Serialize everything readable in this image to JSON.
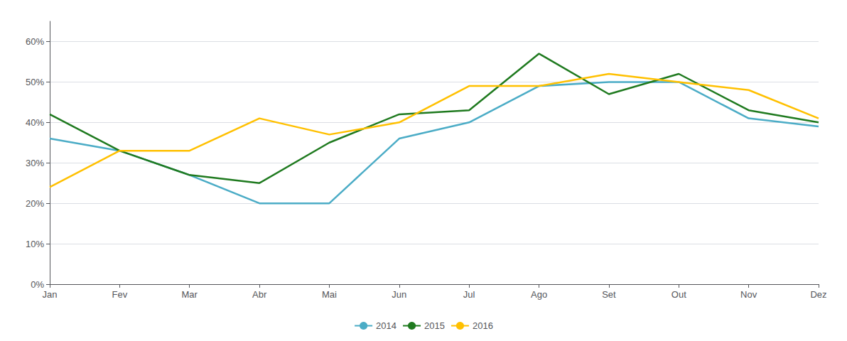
{
  "chart_data": {
    "type": "line",
    "categories": [
      "Jan",
      "Fev",
      "Mar",
      "Abr",
      "Mai",
      "Jun",
      "Jul",
      "Ago",
      "Set",
      "Out",
      "Nov",
      "Dez"
    ],
    "series": [
      {
        "name": "2014",
        "color": "#4BACC6",
        "values": [
          0.36,
          0.33,
          0.27,
          0.2,
          0.2,
          0.36,
          0.4,
          0.49,
          0.5,
          0.5,
          0.41,
          0.39
        ]
      },
      {
        "name": "2015",
        "color": "#1F7A1F",
        "values": [
          0.42,
          0.33,
          0.27,
          0.25,
          0.35,
          0.42,
          0.43,
          0.57,
          0.47,
          0.52,
          0.43,
          0.4
        ]
      },
      {
        "name": "2016",
        "color": "#FFC000",
        "values": [
          0.24,
          0.33,
          0.33,
          0.41,
          0.37,
          0.4,
          0.49,
          0.49,
          0.52,
          0.5,
          0.48,
          0.41
        ]
      }
    ],
    "ylim": [
      0,
      0.65
    ],
    "yticks": [
      {
        "value": 0.0,
        "label": "0%"
      },
      {
        "value": 0.1,
        "label": "10%"
      },
      {
        "value": 0.2,
        "label": "20%"
      },
      {
        "value": 0.3,
        "label": "30%"
      },
      {
        "value": 0.4,
        "label": "40%"
      },
      {
        "value": 0.5,
        "label": "50%"
      },
      {
        "value": 0.6,
        "label": "60%"
      }
    ],
    "grid": true,
    "legend": "bottom"
  }
}
